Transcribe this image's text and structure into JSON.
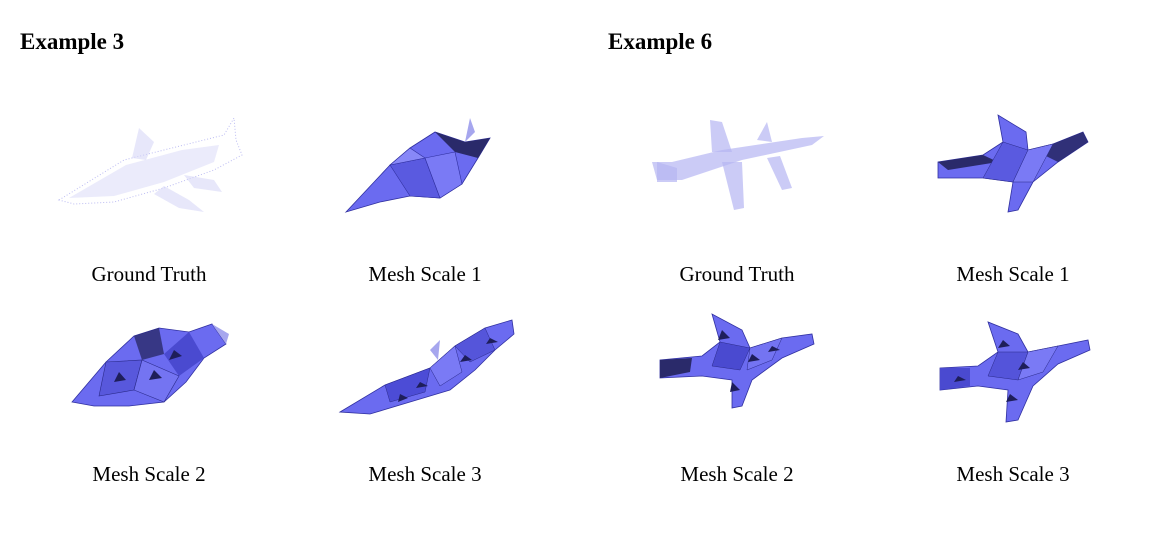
{
  "examples": [
    {
      "title": "Example 3",
      "panels": [
        {
          "caption": "Ground Truth",
          "kind": "points"
        },
        {
          "caption": "Mesh Scale 1",
          "kind": "mesh"
        },
        {
          "caption": "Mesh Scale 2",
          "kind": "mesh"
        },
        {
          "caption": "Mesh Scale 3",
          "kind": "mesh"
        }
      ]
    },
    {
      "title": "Example 6",
      "panels": [
        {
          "caption": "Ground Truth",
          "kind": "points"
        },
        {
          "caption": "Mesh Scale 1",
          "kind": "mesh"
        },
        {
          "caption": "Mesh Scale 2",
          "kind": "mesh"
        },
        {
          "caption": "Mesh Scale 3",
          "kind": "mesh"
        }
      ]
    }
  ],
  "colors": {
    "mesh_fill": "#6b6bf0",
    "mesh_dark": "#2a2a6a",
    "points": "#8c8ce8"
  }
}
